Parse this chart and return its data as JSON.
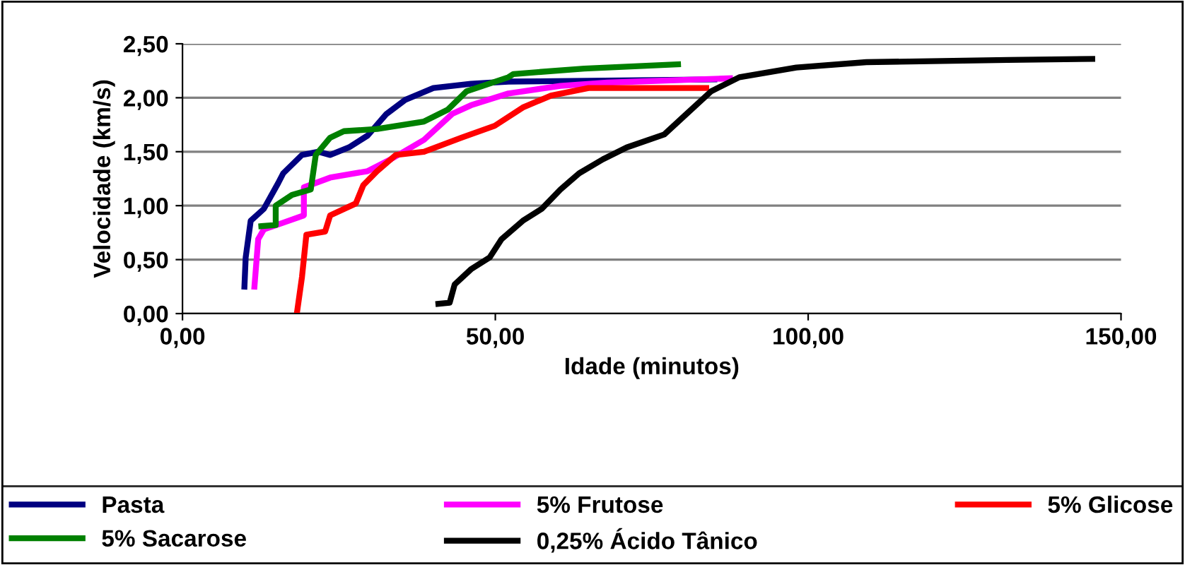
{
  "chart_data": {
    "type": "line",
    "xlabel": "Idade (minutos)",
    "ylabel": "Velocidade (km/s)",
    "xlim": [
      0,
      150
    ],
    "ylim": [
      0,
      2.5
    ],
    "xticks": [
      {
        "value": 0,
        "label": "0,00"
      },
      {
        "value": 50,
        "label": "50,00"
      },
      {
        "value": 100,
        "label": "100,00"
      },
      {
        "value": 150,
        "label": "150,00"
      }
    ],
    "yticks": [
      {
        "value": 0,
        "label": "0,00"
      },
      {
        "value": 0.5,
        "label": "0,50"
      },
      {
        "value": 1,
        "label": "1,00"
      },
      {
        "value": 1.5,
        "label": "1,50"
      },
      {
        "value": 2,
        "label": "2,00"
      },
      {
        "value": 2.5,
        "label": "2,50"
      }
    ],
    "grid": "y",
    "legend": "bottom",
    "marker": "none",
    "line_style": "solid",
    "series": [
      {
        "name": "Pasta",
        "color": "#000080",
        "x": [
          9.9,
          10.1,
          10.9,
          13.0,
          15.3,
          16.1,
          19.1,
          21.7,
          23.6,
          26.6,
          29.6,
          32.6,
          35.6,
          40.1,
          46.1,
          52.1,
          70,
          85
        ],
        "values": [
          0.25,
          0.52,
          0.86,
          0.97,
          1.21,
          1.3,
          1.47,
          1.5,
          1.47,
          1.54,
          1.65,
          1.85,
          1.98,
          2.09,
          2.13,
          2.15,
          2.16,
          2.17
        ]
      },
      {
        "name": "5% Frutose",
        "color": "#ff00ff",
        "x": [
          11.5,
          12.1,
          13.0,
          16.0,
          19.4,
          19.4,
          23.6,
          29.6,
          33.3,
          38.6,
          43.1,
          46.1,
          52.1,
          60.4,
          67.9,
          87.5
        ],
        "values": [
          0.25,
          0.69,
          0.78,
          0.84,
          0.91,
          1.17,
          1.26,
          1.32,
          1.43,
          1.61,
          1.85,
          1.93,
          2.04,
          2.11,
          2.14,
          2.18
        ]
      },
      {
        "name": "5% Glicose",
        "color": "#ff0000",
        "x": [
          18.3,
          19.1,
          19.8,
          22.8,
          23.6,
          27.7,
          28.9,
          31.1,
          34.1,
          38.6,
          44.6,
          49.9,
          54.4,
          58.9,
          64.9,
          83.7
        ],
        "values": [
          0.01,
          0.34,
          0.73,
          0.76,
          0.91,
          1.02,
          1.19,
          1.32,
          1.47,
          1.5,
          1.63,
          1.74,
          1.91,
          2.02,
          2.09,
          2.09
        ]
      },
      {
        "name": "5% Sacarose",
        "color": "#008000",
        "x": [
          12.6,
          14.9,
          14.9,
          17.5,
          20.5,
          21.3,
          23.6,
          25.8,
          31.1,
          38.6,
          42.4,
          45.4,
          52.1,
          52.9,
          64.2,
          79.2
        ],
        "values": [
          0.81,
          0.82,
          1.0,
          1.1,
          1.15,
          1.47,
          1.63,
          1.69,
          1.71,
          1.78,
          1.89,
          2.06,
          2.19,
          2.22,
          2.27,
          2.31
        ]
      },
      {
        "name": "0,25% Ácido Tânico",
        "color": "#000000",
        "x": [
          40.9,
          42.7,
          43.5,
          46.1,
          49.1,
          51.0,
          54.4,
          57.4,
          60.4,
          63.4,
          67.2,
          71.0,
          77.0,
          80.0,
          84.5,
          89.0,
          98.1,
          109.3,
          131.9,
          145.4
        ],
        "values": [
          0.09,
          0.1,
          0.27,
          0.41,
          0.52,
          0.69,
          0.86,
          0.97,
          1.15,
          1.3,
          1.43,
          1.54,
          1.66,
          1.82,
          2.06,
          2.19,
          2.28,
          2.33,
          2.35,
          2.36
        ]
      }
    ]
  }
}
